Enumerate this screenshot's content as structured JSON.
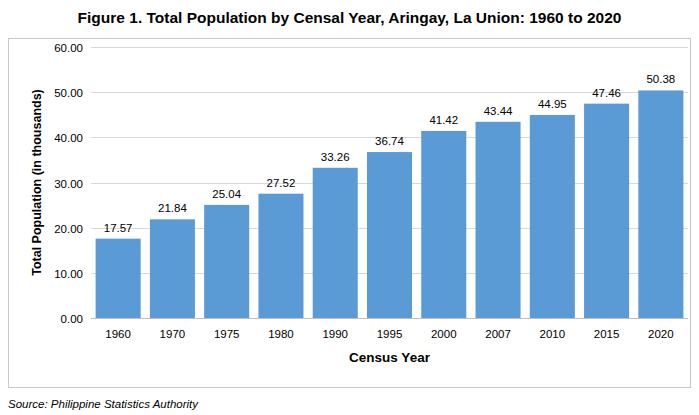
{
  "chart_data": {
    "type": "bar",
    "title": "Figure 1. Total Population by Censal Year, Aringay, La Union: 1960 to 2020",
    "x_label": "Census Year",
    "y_label": "Total Population (in thousands)",
    "source": "Source: Philippine Statistics Authority",
    "categories": [
      "1960",
      "1970",
      "1975",
      "1980",
      "1990",
      "1995",
      "2000",
      "2007",
      "2010",
      "2015",
      "2020"
    ],
    "values": [
      17.57,
      21.84,
      25.04,
      27.52,
      33.26,
      36.74,
      41.42,
      43.44,
      44.95,
      47.46,
      50.38
    ],
    "color": "#5b9bd5",
    "ylim": [
      0,
      60
    ],
    "yticks": [
      {
        "value": 0,
        "label": "0.00"
      },
      {
        "value": 10,
        "label": "10.00"
      },
      {
        "value": 20,
        "label": "20.00"
      },
      {
        "value": 30,
        "label": "30.00"
      },
      {
        "value": 40,
        "label": "40.00"
      },
      {
        "value": 50,
        "label": "50.00"
      },
      {
        "value": 60,
        "label": "60.00"
      }
    ],
    "grid": true,
    "data_labels": true
  }
}
